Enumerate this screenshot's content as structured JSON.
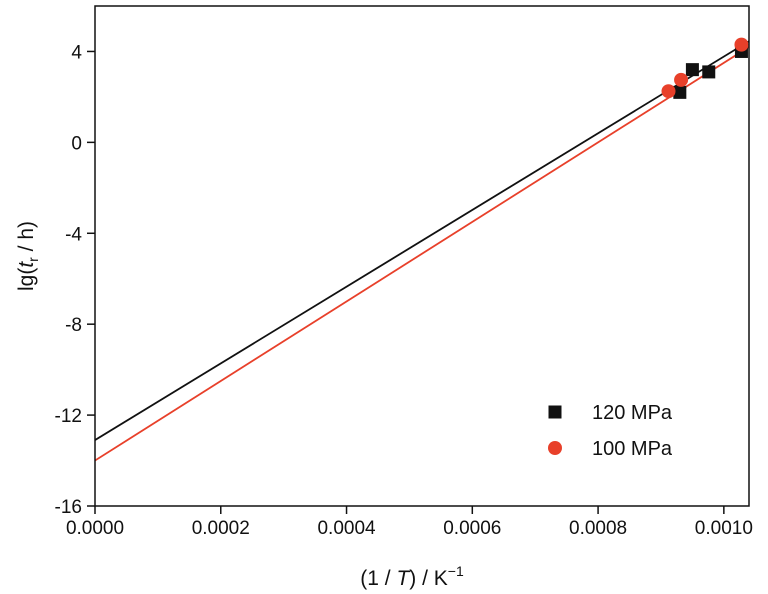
{
  "chart_data": {
    "type": "scatter",
    "xlim": [
      0,
      0.00104
    ],
    "ylim": [
      -16,
      6
    ],
    "x_ticks": [
      {
        "value": 0,
        "label": "0.0000"
      },
      {
        "value": 0.0002,
        "label": "0.0002"
      },
      {
        "value": 0.0004,
        "label": "0.0004"
      },
      {
        "value": 0.0006,
        "label": "0.0006"
      },
      {
        "value": 0.0008,
        "label": "0.0008"
      },
      {
        "value": 0.001,
        "label": "0.0010"
      }
    ],
    "y_ticks": [
      {
        "value": 4,
        "label": "4"
      },
      {
        "value": 0,
        "label": "0"
      },
      {
        "value": -4,
        "label": "-4"
      },
      {
        "value": -8,
        "label": "-8"
      },
      {
        "value": -12,
        "label": "-12"
      },
      {
        "value": -16,
        "label": "-16"
      }
    ],
    "xlabel": {
      "pre": "(1 / ",
      "var": "T",
      "post": ") / K",
      "sup": "−1"
    },
    "ylabel": {
      "pre": "lg(",
      "var": "t",
      "sub": "r",
      "post": " / h)"
    },
    "grid": false,
    "legend_position": "bottom-right",
    "series": [
      {
        "name": "120 MPa",
        "color": "#111111",
        "marker": "square",
        "points": [
          [
            0.00093,
            2.2
          ],
          [
            0.00095,
            3.2
          ],
          [
            0.000976,
            3.1
          ],
          [
            0.001028,
            4.0
          ]
        ],
        "fit_line": {
          "intercept": -13.1,
          "x_end": 0.00104,
          "y_end": 4.45
        }
      },
      {
        "name": "100 MPa",
        "color": "#e8402a",
        "marker": "circle",
        "points": [
          [
            0.000912,
            2.25
          ],
          [
            0.000932,
            2.75
          ],
          [
            0.001028,
            4.3
          ]
        ],
        "fit_line": {
          "intercept": -14.0,
          "x_end": 0.00104,
          "y_end": 4.2
        }
      }
    ]
  }
}
